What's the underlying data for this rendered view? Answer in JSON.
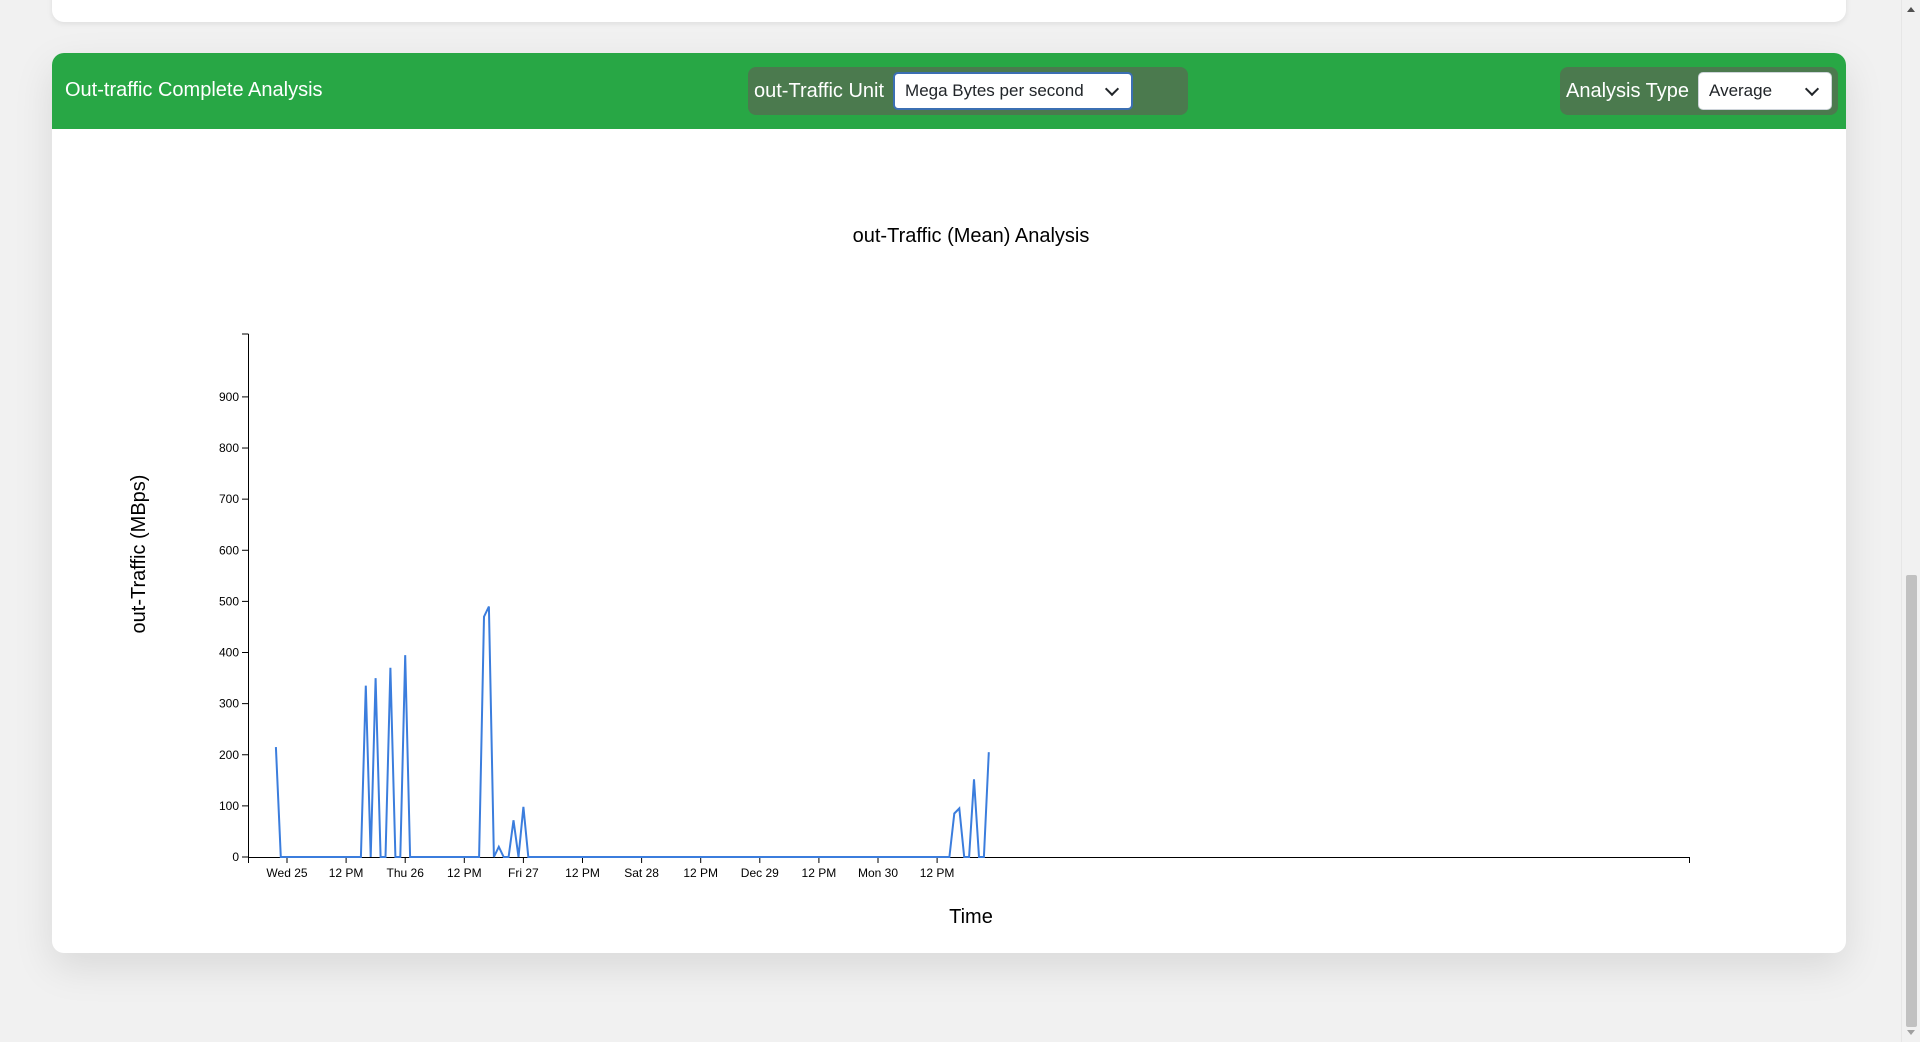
{
  "card": {
    "title": "Out-traffic Complete Analysis",
    "unit_label": "out-Traffic Unit",
    "unit_selected": "Mega Bytes per second",
    "analysis_label": "Analysis Type",
    "analysis_selected": "Average"
  },
  "colors": {
    "header": "#28a745",
    "line": "#3b7ddd"
  },
  "chart_data": {
    "type": "line",
    "title": "out-Traffic (Mean) Analysis",
    "xlabel": "Time",
    "ylabel": "out-Traffic (MBps)",
    "ylim": [
      0,
      980
    ],
    "y_ticks": [
      0,
      100,
      200,
      300,
      400,
      500,
      600,
      700,
      800,
      900
    ],
    "xlim": [
      "Dec 25 00:00",
      "Dec 30 23:45"
    ],
    "x_tick_labels": [
      {
        "t": "Dec 25 00:00",
        "label": "Wed 25"
      },
      {
        "t": "Dec 25 12:00",
        "label": "12 PM"
      },
      {
        "t": "Dec 26 00:00",
        "label": "Thu 26"
      },
      {
        "t": "Dec 26 12:00",
        "label": "12 PM"
      },
      {
        "t": "Dec 27 00:00",
        "label": "Fri 27"
      },
      {
        "t": "Dec 27 12:00",
        "label": "12 PM"
      },
      {
        "t": "Dec 28 00:00",
        "label": "Sat 28"
      },
      {
        "t": "Dec 28 12:00",
        "label": "12 PM"
      },
      {
        "t": "Dec 29 00:00",
        "label": "Dec 29"
      },
      {
        "t": "Dec 29 12:00",
        "label": "12 PM"
      },
      {
        "t": "Dec 30 00:00",
        "label": "Mon 30"
      },
      {
        "t": "Dec 30 12:00",
        "label": "12 PM"
      }
    ],
    "grid": false,
    "series": [
      {
        "points": [
          {
            "t": "Dec 24 21:45",
            "y": 215
          },
          {
            "t": "Dec 24 22:45",
            "y": 0
          },
          {
            "t": "Dec 25 15:00",
            "y": 0
          },
          {
            "t": "Dec 25 16:00",
            "y": 335
          },
          {
            "t": "Dec 25 17:00",
            "y": 0
          },
          {
            "t": "Dec 25 18:00",
            "y": 350
          },
          {
            "t": "Dec 25 19:00",
            "y": 0
          },
          {
            "t": "Dec 25 20:00",
            "y": 0
          },
          {
            "t": "Dec 25 21:00",
            "y": 370
          },
          {
            "t": "Dec 25 22:00",
            "y": 0
          },
          {
            "t": "Dec 25 23:00",
            "y": 0
          },
          {
            "t": "Dec 26 00:00",
            "y": 395
          },
          {
            "t": "Dec 26 01:00",
            "y": 0
          },
          {
            "t": "Dec 26 15:00",
            "y": 0
          },
          {
            "t": "Dec 26 16:00",
            "y": 470
          },
          {
            "t": "Dec 26 17:00",
            "y": 490
          },
          {
            "t": "Dec 26 18:00",
            "y": 0
          },
          {
            "t": "Dec 26 19:00",
            "y": 20
          },
          {
            "t": "Dec 26 20:00",
            "y": 0
          },
          {
            "t": "Dec 26 21:00",
            "y": 0
          },
          {
            "t": "Dec 26 22:00",
            "y": 72
          },
          {
            "t": "Dec 26 23:00",
            "y": 0
          },
          {
            "t": "Dec 27 00:00",
            "y": 98
          },
          {
            "t": "Dec 27 01:00",
            "y": 0
          },
          {
            "t": "Dec 30 14:30",
            "y": 0
          },
          {
            "t": "Dec 30 15:30",
            "y": 85
          },
          {
            "t": "Dec 30 16:30",
            "y": 95
          },
          {
            "t": "Dec 30 17:30",
            "y": 0
          },
          {
            "t": "Dec 30 18:30",
            "y": 0
          },
          {
            "t": "Dec 30 19:30",
            "y": 152
          },
          {
            "t": "Dec 30 20:30",
            "y": 0
          },
          {
            "t": "Dec 30 21:30",
            "y": 0
          },
          {
            "t": "Dec 30 22:30",
            "y": 205
          }
        ]
      }
    ]
  }
}
